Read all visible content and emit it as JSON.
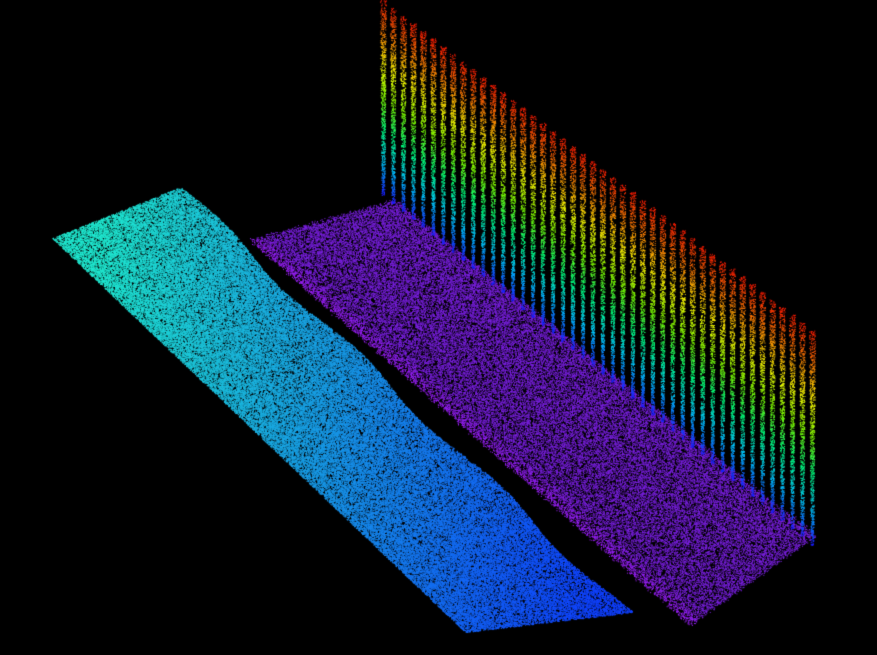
{
  "scene": {
    "background": "#000000",
    "view": "3d-point-cloud",
    "colormap": [
      "#1a1aff",
      "#00c8ff",
      "#00ff80",
      "#80ff00",
      "#ffff00",
      "#ff8000",
      "#ff1a00"
    ],
    "terrain_colors": {
      "left_strip_top": "#20e8d0",
      "left_strip_bottom": "#1040ff",
      "right_strip": "#7a20e0",
      "right_strip_edge": "#a020ff"
    }
  }
}
